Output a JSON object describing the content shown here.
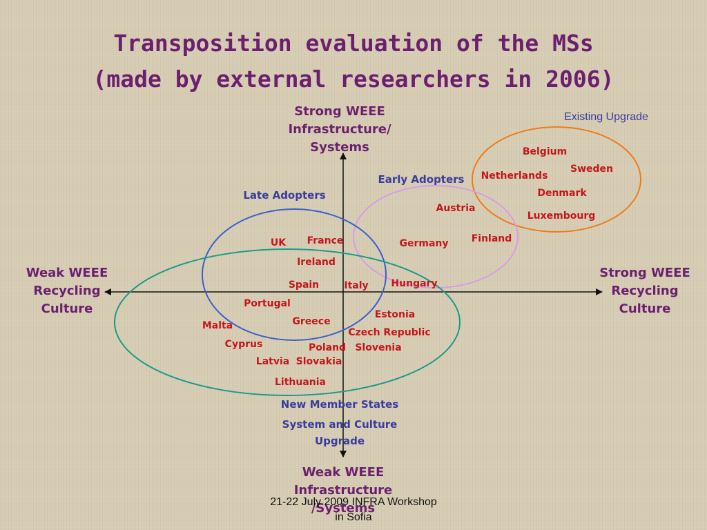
{
  "title": {
    "line1": "Transposition evaluation of the MSs",
    "line2": "(made by external researchers in 2006)"
  },
  "axes": {
    "top": [
      "Strong WEEE",
      "Infrastructure/",
      "Systems"
    ],
    "bottom": [
      "Weak WEEE",
      "Infrastructure",
      "/Systems"
    ],
    "left": [
      "Weak WEEE",
      "Recycling",
      "Culture"
    ],
    "right": [
      "Strong WEEE",
      "Recycling",
      "Culture"
    ]
  },
  "groups": {
    "existing_upgrade": "Existing Upgrade",
    "early_adopters": "Early Adopters",
    "late_adopters": "Late Adopters",
    "new_member_states": "New Member States",
    "system_culture_line1": "System and Culture",
    "system_culture_line2": "Upgrade"
  },
  "countries": {
    "belgium": "Belgium",
    "sweden": "Sweden",
    "netherlands": "Netherlands",
    "denmark": "Denmark",
    "luxembourg": "Luxembourg",
    "austria": "Austria",
    "finland": "Finland",
    "germany": "Germany",
    "hungary": "Hungary",
    "uk": "UK",
    "france": "France",
    "ireland": "Ireland",
    "spain": "Spain",
    "italy": "Italy",
    "portugal": "Portugal",
    "greece": "Greece",
    "malta": "Malta",
    "cyprus": "Cyprus",
    "estonia": "Estonia",
    "czech_republic": "Czech Republic",
    "poland": "Poland",
    "slovenia": "Slovenia",
    "latvia": "Latvia",
    "slovakia": "Slovakia",
    "lithuania": "Lithuania"
  },
  "colors": {
    "existing_upgrade_ellipse": "#f07a1a",
    "early_adopters_ellipse": "#d79be8",
    "late_adopters_ellipse": "#3a5fcd",
    "new_member_states_ellipse": "#1a9a8a",
    "country_text": "#c4161c",
    "axis_text": "#6b1f6e",
    "group_text": "#3a3b9e"
  },
  "footer": {
    "line1": "21-22 July 2009 INFRA Workshop",
    "line2": "in Sofia"
  }
}
